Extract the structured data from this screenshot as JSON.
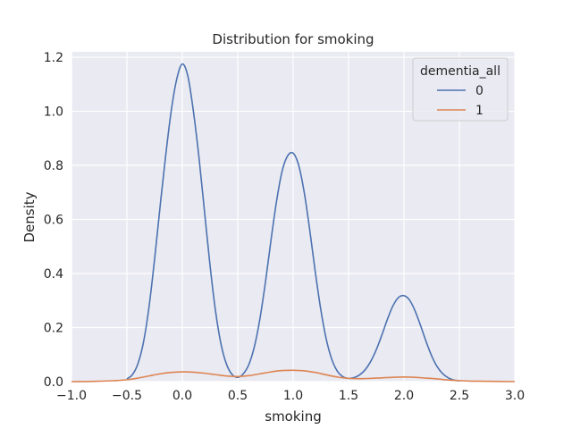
{
  "chart_data": {
    "type": "line",
    "title": "Distribution for smoking",
    "xlabel": "smoking",
    "ylabel": "Density",
    "xlim": [
      -1.0,
      3.0
    ],
    "ylim": [
      0.0,
      1.22
    ],
    "xticks": [
      "−1.0",
      "−0.5",
      "0.0",
      "0.5",
      "1.0",
      "1.5",
      "2.0",
      "2.5",
      "3.0"
    ],
    "xtick_values": [
      -1.0,
      -0.5,
      0.0,
      0.5,
      1.0,
      1.5,
      2.0,
      2.5,
      3.0
    ],
    "yticks": [
      "0.0",
      "0.2",
      "0.4",
      "0.6",
      "0.8",
      "1.0",
      "1.2"
    ],
    "ytick_values": [
      0.0,
      0.2,
      0.4,
      0.6,
      0.8,
      1.0,
      1.2
    ],
    "grid": true,
    "legend": {
      "title": "dementia_all",
      "placement": "top-right"
    },
    "series": [
      {
        "name": "0",
        "color": "#4c72b0",
        "x": [
          -0.5,
          -0.45,
          -0.4,
          -0.35,
          -0.3,
          -0.25,
          -0.2,
          -0.15,
          -0.1,
          -0.05,
          0.0,
          0.05,
          0.1,
          0.15,
          0.2,
          0.25,
          0.3,
          0.35,
          0.4,
          0.45,
          0.5,
          0.55,
          0.6,
          0.65,
          0.7,
          0.75,
          0.8,
          0.85,
          0.9,
          0.95,
          1.0,
          1.05,
          1.1,
          1.15,
          1.2,
          1.25,
          1.3,
          1.35,
          1.4,
          1.45,
          1.5,
          1.55,
          1.6,
          1.65,
          1.7,
          1.75,
          1.8,
          1.85,
          1.9,
          1.95,
          2.0,
          2.05,
          2.1,
          2.15,
          2.2,
          2.25,
          2.3,
          2.35,
          2.4,
          2.45,
          2.5
        ],
        "y": [
          0.01,
          0.026,
          0.067,
          0.147,
          0.278,
          0.454,
          0.65,
          0.837,
          1.002,
          1.12,
          1.175,
          1.13,
          1.0,
          0.83,
          0.63,
          0.43,
          0.26,
          0.137,
          0.063,
          0.026,
          0.016,
          0.029,
          0.063,
          0.129,
          0.232,
          0.368,
          0.523,
          0.667,
          0.778,
          0.835,
          0.845,
          0.8,
          0.7,
          0.56,
          0.405,
          0.265,
          0.155,
          0.081,
          0.038,
          0.018,
          0.012,
          0.015,
          0.025,
          0.044,
          0.075,
          0.118,
          0.172,
          0.23,
          0.28,
          0.311,
          0.318,
          0.302,
          0.262,
          0.207,
          0.148,
          0.095,
          0.055,
          0.029,
          0.014,
          0.006,
          0.003
        ]
      },
      {
        "name": "1",
        "color": "#dd8452",
        "x": [
          -1.0,
          -0.8,
          -0.6,
          -0.5,
          -0.4,
          -0.3,
          -0.2,
          -0.1,
          0.0,
          0.1,
          0.2,
          0.3,
          0.4,
          0.5,
          0.6,
          0.7,
          0.8,
          0.9,
          1.0,
          1.1,
          1.2,
          1.3,
          1.4,
          1.5,
          1.6,
          1.7,
          1.8,
          1.9,
          2.0,
          2.1,
          2.2,
          2.3,
          2.4,
          2.5,
          2.6,
          2.8,
          3.0
        ],
        "y": [
          0.0,
          0.001,
          0.004,
          0.007,
          0.013,
          0.021,
          0.029,
          0.034,
          0.036,
          0.035,
          0.031,
          0.026,
          0.021,
          0.019,
          0.022,
          0.029,
          0.036,
          0.041,
          0.042,
          0.04,
          0.034,
          0.025,
          0.017,
          0.012,
          0.011,
          0.012,
          0.014,
          0.016,
          0.017,
          0.016,
          0.013,
          0.01,
          0.006,
          0.004,
          0.002,
          0.001,
          0.0
        ]
      }
    ]
  }
}
